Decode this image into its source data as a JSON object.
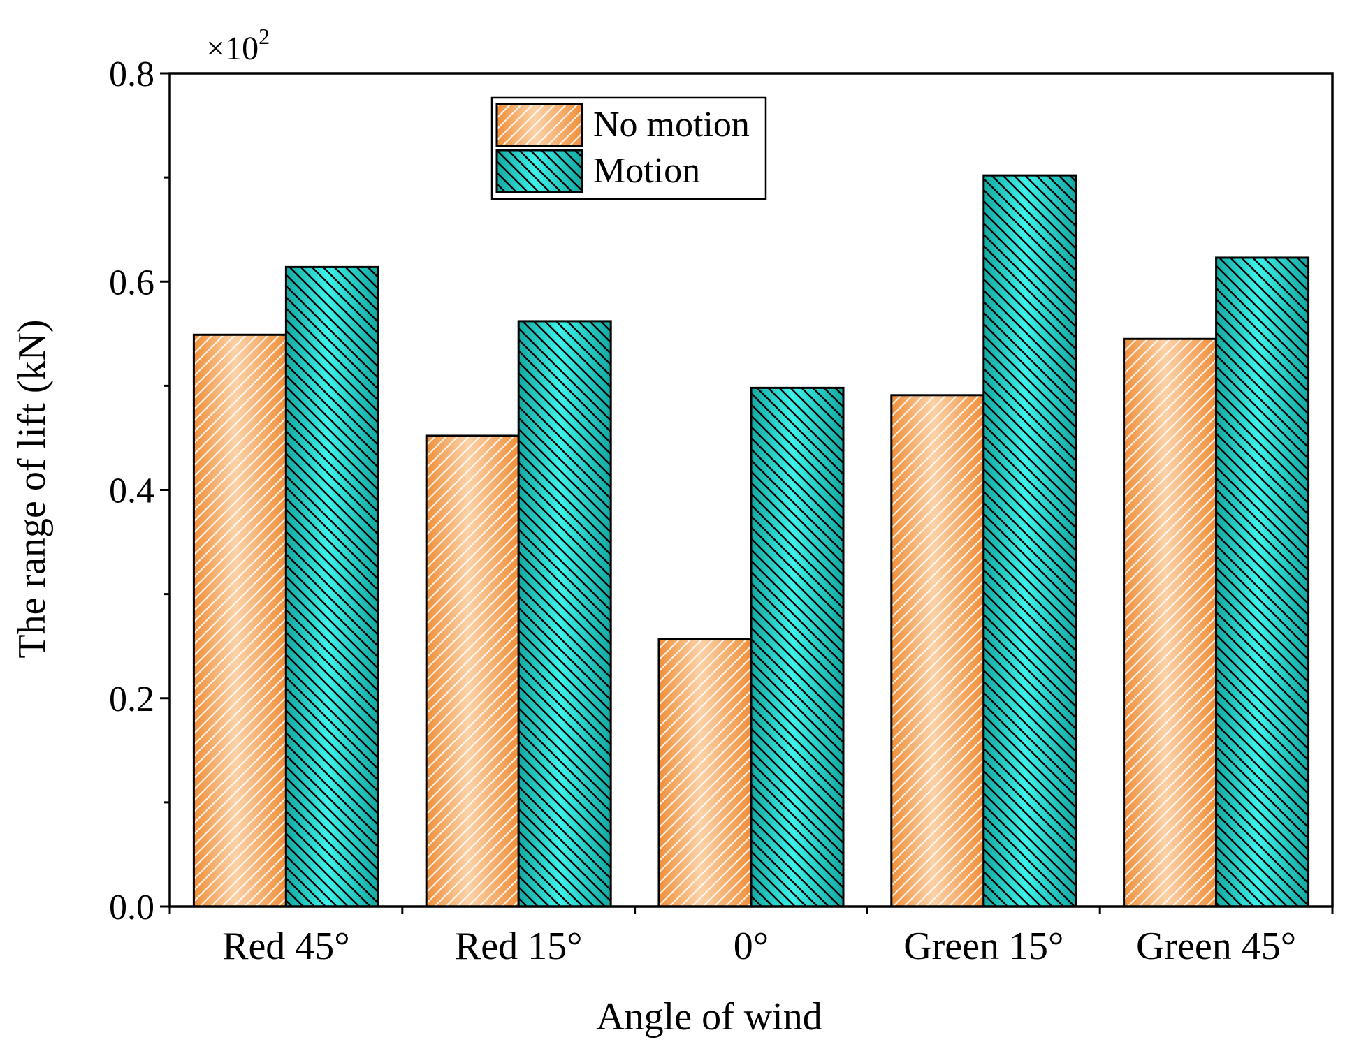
{
  "chart_data": {
    "type": "bar",
    "title": "",
    "xlabel": "Angle of wind",
    "ylabel": "The range of lift (kN)",
    "y_multiplier": "×10",
    "y_multiplier_exp": "2",
    "ylim": [
      0,
      0.8
    ],
    "yticks": [
      0.0,
      0.2,
      0.4,
      0.6,
      0.8
    ],
    "ytick_labels": [
      "0.0",
      "0.2",
      "0.4",
      "0.6",
      "0.8"
    ],
    "categories": [
      "Red 45°",
      "Red 15°",
      "0°",
      "Green 15°",
      "Green 45°"
    ],
    "series": [
      {
        "name": "No motion",
        "values": [
          0.549,
          0.452,
          0.257,
          0.491,
          0.545
        ]
      },
      {
        "name": "Motion",
        "values": [
          0.614,
          0.562,
          0.498,
          0.702,
          0.623
        ]
      }
    ],
    "legend_position": "top-center",
    "colors": {
      "no_motion": "#f4a25a",
      "motion": "#1fc7c0"
    }
  }
}
